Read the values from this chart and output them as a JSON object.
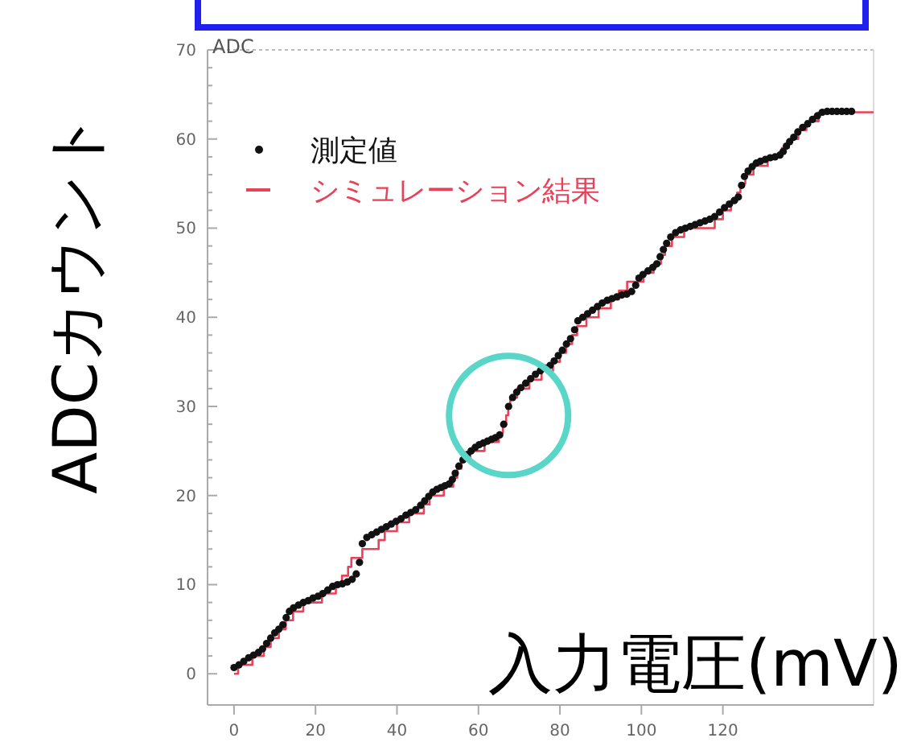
{
  "chart_data": {
    "type": "scatter",
    "xlabel": "入力電圧(mV)",
    "ylabel": "ADCカウント",
    "annotations": [
      "ADC"
    ],
    "xlim": [
      -6.5,
      157
    ],
    "ylim": [
      -3.5,
      70
    ],
    "xticks": [
      0,
      20,
      40,
      60,
      80,
      100,
      120
    ],
    "yticks": [
      0,
      {
        "value": 2,
        "label": null
      },
      {
        "value": 4,
        "label": null
      },
      {
        "value": 6,
        "label": null
      },
      {
        "value": 8,
        "label": null
      },
      10,
      {
        "value": 12,
        "label": null
      },
      {
        "value": 14,
        "label": null
      },
      {
        "value": 16,
        "label": null
      },
      {
        "value": 18,
        "label": null
      },
      20,
      {
        "value": 22,
        "label": null
      },
      {
        "value": 24,
        "label": null
      },
      {
        "value": 26,
        "label": null
      },
      {
        "value": 28,
        "label": null
      },
      30,
      {
        "value": 32,
        "label": null
      },
      {
        "value": 34,
        "label": null
      },
      {
        "value": 36,
        "label": null
      },
      {
        "value": 38,
        "label": null
      },
      40,
      {
        "value": 42,
        "label": null
      },
      {
        "value": 44,
        "label": null
      },
      {
        "value": 46,
        "label": null
      },
      {
        "value": 48,
        "label": null
      },
      50,
      {
        "value": 52,
        "label": null
      },
      {
        "value": 54,
        "label": null
      },
      {
        "value": 56,
        "label": null
      },
      {
        "value": 58,
        "label": null
      },
      60,
      {
        "value": 62,
        "label": null
      },
      {
        "value": 64,
        "label": null
      },
      {
        "value": 66,
        "label": null
      },
      {
        "value": 68,
        "label": null
      },
      70
    ],
    "legend": "top left",
    "series": [
      {
        "name": "測定値",
        "type": "scatter",
        "marker": "circle",
        "color": "#111111",
        "x": [
          0,
          1.2,
          2.4,
          3.6,
          4.8,
          6,
          7,
          8,
          9,
          10,
          11,
          12,
          12.8,
          13.6,
          14.6,
          15.8,
          17,
          18.2,
          19.4,
          20.6,
          21.8,
          23,
          24.2,
          25.4,
          26.6,
          27.8,
          29,
          30,
          30.8,
          31.5,
          32.6,
          33.8,
          35,
          36.2,
          37.4,
          38.6,
          39.8,
          41,
          42.2,
          43.4,
          44.6,
          45.8,
          46.8,
          47.8,
          48.8,
          49.8,
          50.8,
          51.8,
          52.8,
          53.6,
          54.3,
          55.2,
          56.2,
          57.2,
          58.2,
          59.2,
          60.2,
          61.2,
          62.2,
          63.2,
          64.2,
          65.2,
          66.2,
          67.4,
          68.4,
          69.4,
          70.4,
          71.6,
          72.8,
          74,
          75.2,
          76.4,
          77.6,
          78.6,
          79.6,
          80.6,
          81.6,
          82.6,
          83.6,
          84.4,
          85.6,
          86.8,
          88,
          89.2,
          90.4,
          91.6,
          92.8,
          94,
          95.2,
          96.4,
          97.6,
          98.6,
          99.4,
          100.4,
          101.6,
          102.8,
          103.8,
          104.6,
          105.4,
          106.2,
          107.2,
          108.4,
          109.6,
          110.8,
          112,
          113.2,
          114.4,
          115.6,
          116.8,
          118,
          119.2,
          120.4,
          121.6,
          122.8,
          123.8,
          124.6,
          125.3,
          126.2,
          127.2,
          128.2,
          129.2,
          130.4,
          131.6,
          132.8,
          134,
          134.8,
          135.6,
          136.4,
          137.4,
          138.4,
          139.6,
          140.8,
          142,
          143.2,
          144.4,
          145.6,
          146.8,
          148,
          149.2,
          150.4,
          151.6
        ],
        "values": [
          0.7,
          1.0,
          1.4,
          1.8,
          2.1,
          2.4,
          2.8,
          3.4,
          4.0,
          4.6,
          5.0,
          5.5,
          6.3,
          7.0,
          7.4,
          7.7,
          8.0,
          8.2,
          8.5,
          8.7,
          9.0,
          9.4,
          9.8,
          10.0,
          10.1,
          10.3,
          10.6,
          11.2,
          12.5,
          14.6,
          15.3,
          15.6,
          15.9,
          16.2,
          16.5,
          16.8,
          17.1,
          17.4,
          17.8,
          18.1,
          18.4,
          18.9,
          19.4,
          19.9,
          20.4,
          20.7,
          20.9,
          21.1,
          21.3,
          21.8,
          22.5,
          23.3,
          24.0,
          24.6,
          25.0,
          25.4,
          25.7,
          25.9,
          26.1,
          26.3,
          26.5,
          26.8,
          28.0,
          30.0,
          31.0,
          31.6,
          32.1,
          32.6,
          33.1,
          33.6,
          34.0,
          34.3,
          34.6,
          35.1,
          35.7,
          36.3,
          37.0,
          37.6,
          38.6,
          39.6,
          40.0,
          40.4,
          40.8,
          41.2,
          41.6,
          41.9,
          42.1,
          42.3,
          42.5,
          42.6,
          42.9,
          43.6,
          44.4,
          44.8,
          45.2,
          45.6,
          46.0,
          46.8,
          47.6,
          48.3,
          49.0,
          49.5,
          49.8,
          50.0,
          50.2,
          50.4,
          50.6,
          50.8,
          51.0,
          51.3,
          51.8,
          52.3,
          52.7,
          53.1,
          53.5,
          54.8,
          55.8,
          56.4,
          56.9,
          57.3,
          57.5,
          57.7,
          57.9,
          58.0,
          58.2,
          58.6,
          59.2,
          59.7,
          60.2,
          60.8,
          61.3,
          61.7,
          62.2,
          62.6,
          63.0,
          63.1,
          63.1,
          63.1,
          63.1,
          63.1,
          63.1
        ]
      },
      {
        "name": "シミュレーション結果",
        "type": "step",
        "line_style": "solid",
        "color": "#e8415a",
        "x": [
          0,
          1.0,
          4.5,
          7.3,
          9.0,
          11.0,
          12.7,
          14.5,
          17.0,
          21.6,
          25.0,
          26.5,
          28.0,
          28.8,
          31.5,
          35.5,
          37.0,
          40.0,
          43.0,
          46.6,
          48.0,
          51.5,
          53.8,
          54.8,
          55.8,
          58.0,
          61.5,
          65.0,
          66.0,
          66.8,
          67.3,
          67.8,
          69.5,
          72.5,
          75.5,
          78.3,
          80.0,
          81.5,
          83.0,
          84.2,
          86.5,
          89.5,
          92.5,
          94.5,
          96.5,
          100.5,
          103.0,
          104.8,
          105.8,
          107.5,
          110.5,
          118.0,
          120.0,
          122.0,
          123.5,
          124.3,
          125.5,
          127.5,
          131.0,
          134.5,
          136.2,
          138.5,
          140.5,
          143.5,
          157
        ],
        "values": [
          0,
          1,
          2,
          3,
          4,
          5,
          6,
          7,
          8,
          9,
          10,
          11,
          12,
          13,
          14,
          15,
          16,
          17,
          18,
          19,
          20,
          21,
          22,
          23,
          24,
          25,
          26,
          27,
          28,
          29,
          30,
          31,
          32,
          33,
          34,
          35,
          36,
          37,
          38,
          39,
          40,
          41,
          42,
          43,
          44,
          45,
          46,
          47,
          48,
          49,
          50,
          51,
          52,
          53,
          54,
          55,
          56,
          57,
          58,
          59,
          60,
          61,
          62,
          63,
          63
        ]
      }
    ]
  }
}
